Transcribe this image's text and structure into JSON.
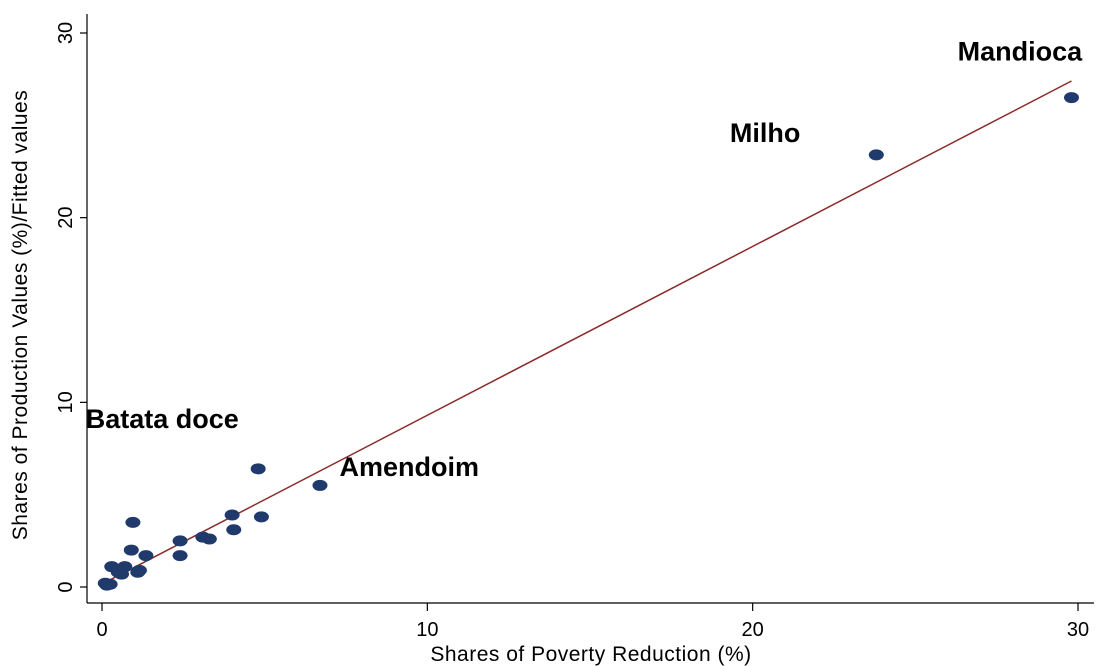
{
  "chart_data": {
    "type": "scatter",
    "xlabel": "Shares of Poverty Reduction (%)",
    "ylabel": "Shares of Production Values (%)/Fitted values",
    "xlim": [
      0,
      30
    ],
    "ylim": [
      0,
      30
    ],
    "xticks": [
      0,
      10,
      20,
      30
    ],
    "yticks": [
      0,
      10,
      20,
      30
    ],
    "grid": false,
    "legend": "none",
    "colors": {
      "points": "#1f3a6b",
      "fit_line": "#8b2a2a"
    },
    "series": [
      {
        "type": "scatter",
        "points": [
          [
            0.1,
            0.2
          ],
          [
            0.25,
            0.15
          ],
          [
            0.15,
            0.1
          ],
          [
            0.3,
            1.1
          ],
          [
            0.5,
            0.8
          ],
          [
            0.6,
            0.7
          ],
          [
            0.7,
            1.1
          ],
          [
            0.9,
            2.0
          ],
          [
            0.95,
            3.5
          ],
          [
            1.1,
            0.8
          ],
          [
            1.15,
            0.9
          ],
          [
            1.35,
            1.7
          ],
          [
            2.4,
            2.5
          ],
          [
            2.4,
            1.7
          ],
          [
            3.1,
            2.7
          ],
          [
            3.3,
            2.6
          ],
          [
            4.0,
            3.9
          ],
          [
            4.05,
            3.1
          ],
          [
            4.8,
            6.4
          ],
          [
            4.9,
            3.8
          ],
          [
            6.7,
            5.5
          ],
          [
            23.8,
            23.4
          ],
          [
            29.8,
            26.5
          ]
        ]
      },
      {
        "type": "line",
        "points": [
          [
            0.1,
            0.25
          ],
          [
            29.8,
            27.4
          ]
        ]
      }
    ],
    "annotations": [
      {
        "text": "Mandioca",
        "x": 26.3,
        "y": 28.5
      },
      {
        "text": "Milho",
        "x": 19.3,
        "y": 24.1
      },
      {
        "text": "Amendoim",
        "x": 7.3,
        "y": 6.0
      },
      {
        "text": "Batata doce",
        "x": -0.5,
        "y": 8.6
      }
    ]
  }
}
